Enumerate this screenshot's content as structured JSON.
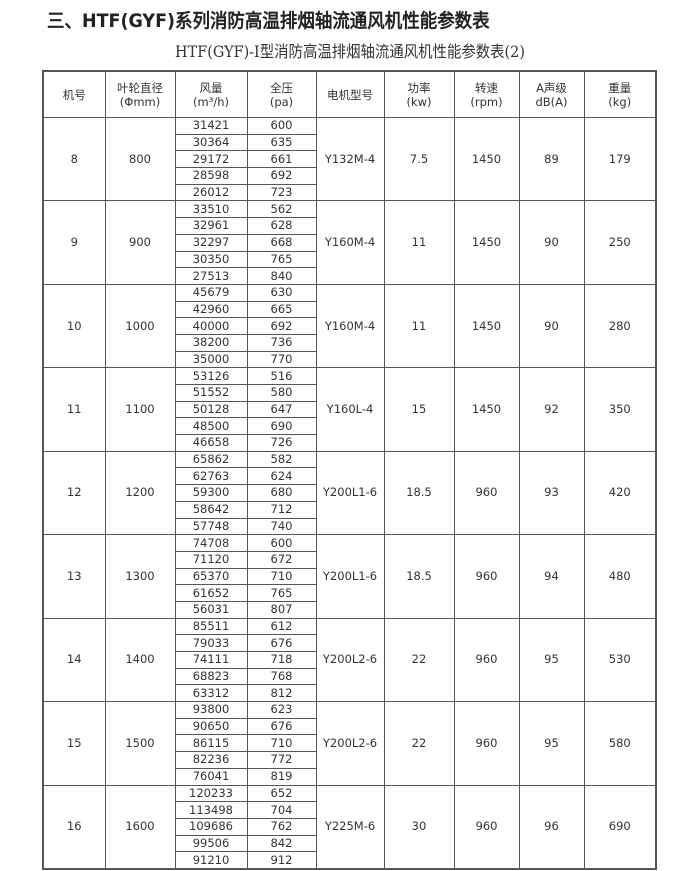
{
  "title": "三、HTF(GYF)系列消防高温排烟轴流通风机性能参数表",
  "subtitle": "HTF(GYF)-Ⅰ型消防高温排烟轴流通风机性能参数表(2)",
  "table": {
    "headers": [
      {
        "line1": "机号",
        "line2": ""
      },
      {
        "line1": "叶轮直径",
        "line2": "(Φmm)"
      },
      {
        "line1": "风量",
        "line2": "(m³/h)"
      },
      {
        "line1": "全压",
        "line2": "(pa)"
      },
      {
        "line1": "电机型号",
        "line2": ""
      },
      {
        "line1": "功率",
        "line2": "(kw)"
      },
      {
        "line1": "转速",
        "line2": "(rpm)"
      },
      {
        "line1": "A声级",
        "line2": "dB(A)"
      },
      {
        "line1": "重量",
        "line2": "(kg)"
      }
    ],
    "groups": [
      {
        "no": "8",
        "dia": "800",
        "flow": [
          "31421",
          "30364",
          "29172",
          "28598",
          "26012"
        ],
        "pres": [
          "600",
          "635",
          "661",
          "692",
          "723"
        ],
        "motor": "Y132M-4",
        "power": "7.5",
        "speed": "1450",
        "noise": "89",
        "weight": "179"
      },
      {
        "no": "9",
        "dia": "900",
        "flow": [
          "33510",
          "32961",
          "32297",
          "30350",
          "27513"
        ],
        "pres": [
          "562",
          "628",
          "668",
          "765",
          "840"
        ],
        "motor": "Y160M-4",
        "power": "11",
        "speed": "1450",
        "noise": "90",
        "weight": "250"
      },
      {
        "no": "10",
        "dia": "1000",
        "flow": [
          "45679",
          "42960",
          "40000",
          "38200",
          "35000"
        ],
        "pres": [
          "630",
          "665",
          "692",
          "736",
          "770"
        ],
        "motor": "Y160M-4",
        "power": "11",
        "speed": "1450",
        "noise": "90",
        "weight": "280"
      },
      {
        "no": "11",
        "dia": "1100",
        "flow": [
          "53126",
          "51552",
          "50128",
          "48500",
          "46658"
        ],
        "pres": [
          "516",
          "580",
          "647",
          "690",
          "726"
        ],
        "motor": "Y160L-4",
        "power": "15",
        "speed": "1450",
        "noise": "92",
        "weight": "350"
      },
      {
        "no": "12",
        "dia": "1200",
        "flow": [
          "65862",
          "62763",
          "59300",
          "58642",
          "57748"
        ],
        "pres": [
          "582",
          "624",
          "680",
          "712",
          "740"
        ],
        "motor": "Y200L1-6",
        "power": "18.5",
        "speed": "960",
        "noise": "93",
        "weight": "420"
      },
      {
        "no": "13",
        "dia": "1300",
        "flow": [
          "74708",
          "71120",
          "65370",
          "61652",
          "56031"
        ],
        "pres": [
          "600",
          "672",
          "710",
          "765",
          "807"
        ],
        "motor": "Y200L1-6",
        "power": "18.5",
        "speed": "960",
        "noise": "94",
        "weight": "480"
      },
      {
        "no": "14",
        "dia": "1400",
        "flow": [
          "85511",
          "79033",
          "74111",
          "68823",
          "63312"
        ],
        "pres": [
          "612",
          "676",
          "718",
          "768",
          "812"
        ],
        "motor": "Y200L2-6",
        "power": "22",
        "speed": "960",
        "noise": "95",
        "weight": "530"
      },
      {
        "no": "15",
        "dia": "1500",
        "flow": [
          "93800",
          "90650",
          "86115",
          "82236",
          "76041"
        ],
        "pres": [
          "623",
          "676",
          "710",
          "772",
          "819"
        ],
        "motor": "Y200L2-6",
        "power": "22",
        "speed": "960",
        "noise": "95",
        "weight": "580"
      },
      {
        "no": "16",
        "dia": "1600",
        "flow": [
          "120233",
          "113498",
          "109686",
          "99506",
          "91210"
        ],
        "pres": [
          "652",
          "704",
          "762",
          "842",
          "912"
        ],
        "motor": "Y225M-6",
        "power": "30",
        "speed": "960",
        "noise": "96",
        "weight": "690"
      }
    ]
  }
}
